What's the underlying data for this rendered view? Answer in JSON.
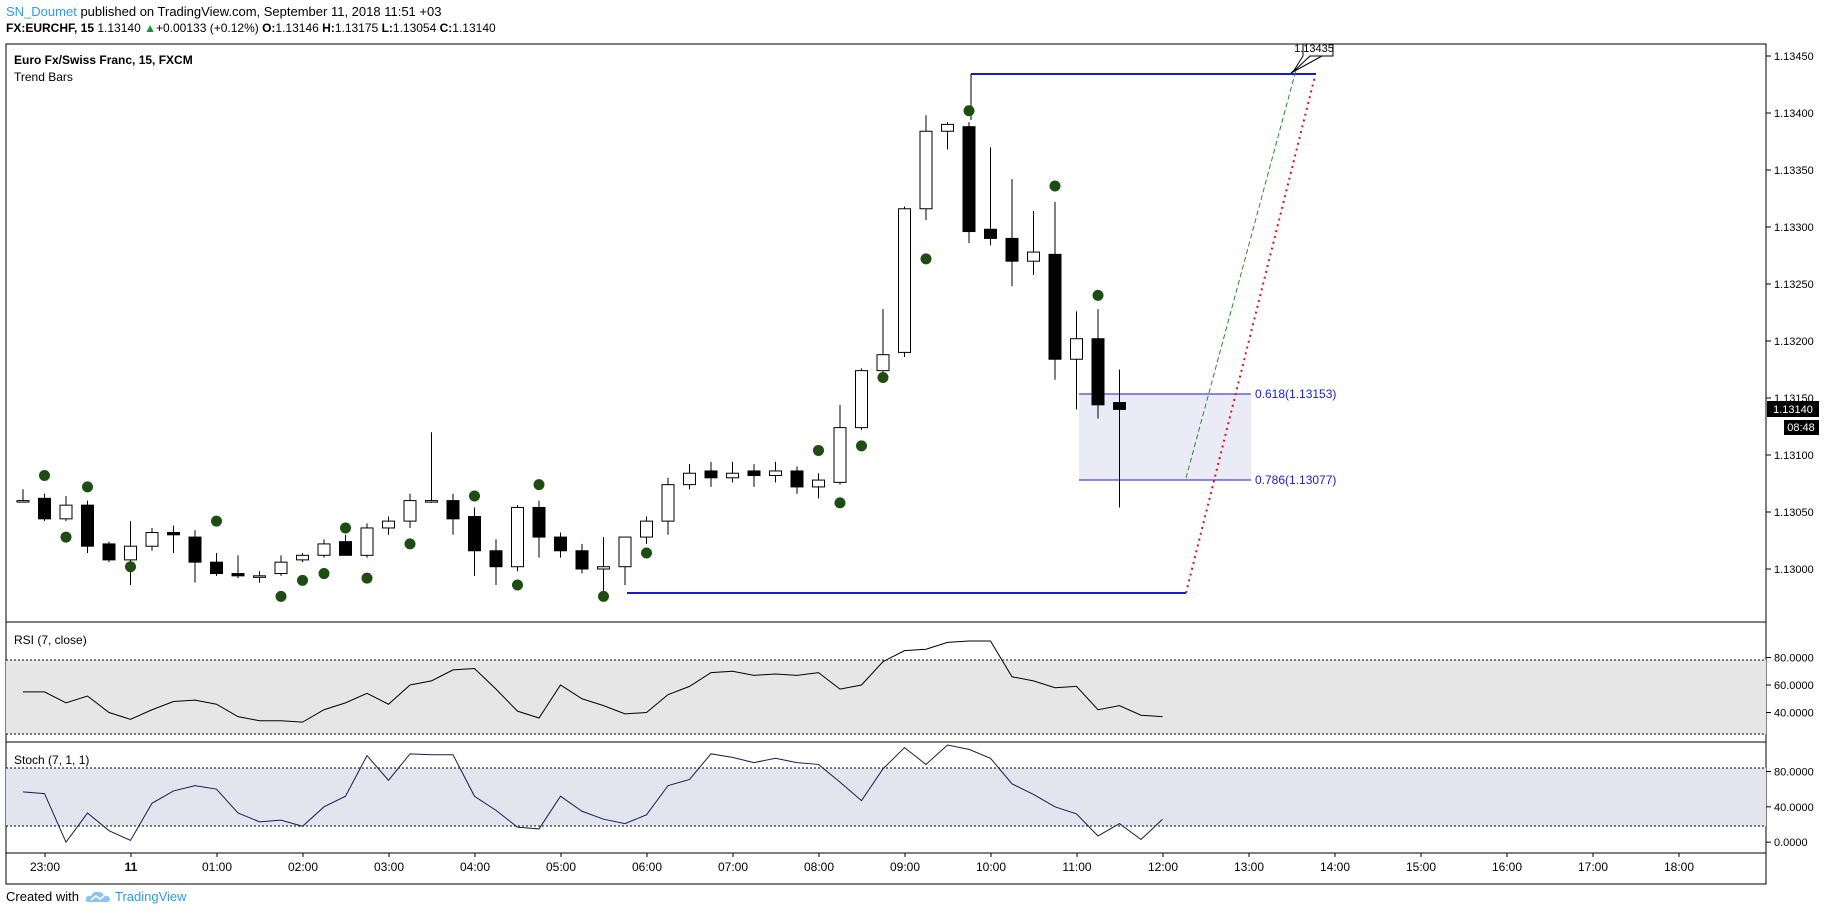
{
  "header": {
    "author": "SN_Doumet",
    "published_text": "published on TradingView.com, September 11, 2018 11:51 +03",
    "symbol": "FX:EURCHF, 15",
    "change_arrow": "▲",
    "change": "+0.00133 (+0.12%)",
    "o_label": "O:",
    "o_value": "1.13146",
    "h_label": "H:",
    "h_value": "1.13175",
    "l_label": "L:",
    "l_value": "1.13054",
    "c_label": "C:",
    "c_value": "1.13140"
  },
  "main_pane": {
    "title": "Euro Fx/Swiss Franc, 15, FXCM",
    "indicator": "Trend Bars",
    "price_labels": [
      "1.13450",
      "1.13400",
      "1.13350",
      "1.13300",
      "1.13250",
      "1.13200",
      "1.13150",
      "1.13100",
      "1.13050",
      "1.13000"
    ],
    "current_price": "1.13140",
    "countdown": "08:48",
    "target_label": "1.13435",
    "fib_618": "0.618(1.13153)",
    "fib_786": "0.786(1.13077)"
  },
  "rsi_pane": {
    "title": "RSI (7, close)",
    "labels": [
      "80.0000",
      "60.0000",
      "40.0000"
    ]
  },
  "stoch_pane": {
    "title": "Stoch (7, 1, 1)",
    "labels": [
      "80.0000",
      "40.0000",
      "0.0000"
    ]
  },
  "time_axis": [
    "23:00",
    "11",
    "01:00",
    "02:00",
    "03:00",
    "04:00",
    "05:00",
    "06:00",
    "07:00",
    "08:00",
    "09:00",
    "10:00",
    "11:00",
    "12:00",
    "13:00",
    "14:00",
    "15:00",
    "16:00",
    "17:00",
    "18:00"
  ],
  "footer": {
    "created_with": "Created with",
    "brand": "TradingView"
  },
  "colors": {
    "up_fill": "#ffffff",
    "down_fill": "#000000",
    "dot": "#1e4d12",
    "line_blue": "#1a1acc",
    "rsi_band": "#e6e6e6",
    "stoch_band": "#e4e4ef",
    "fib_zone": "#ebebf8"
  },
  "chart_data": [
    {
      "type": "candlestick",
      "title": "Euro Fx/Swiss Franc, 15, FXCM",
      "timeframe": "15",
      "y_range": [
        1.1296,
        1.1346
      ],
      "candles": [
        {
          "o": 1.1306,
          "h": 1.1307,
          "l": 1.1306,
          "c": 1.1306
        },
        {
          "o": 1.13062,
          "h": 1.13066,
          "l": 1.13042,
          "c": 1.13044
        },
        {
          "o": 1.13044,
          "h": 1.13064,
          "l": 1.13042,
          "c": 1.13056
        },
        {
          "o": 1.13056,
          "h": 1.1306,
          "l": 1.13014,
          "c": 1.1302
        },
        {
          "o": 1.13022,
          "h": 1.13024,
          "l": 1.13006,
          "c": 1.13008
        },
        {
          "o": 1.13008,
          "h": 1.13042,
          "l": 1.12986,
          "c": 1.1302
        },
        {
          "o": 1.1302,
          "h": 1.13036,
          "l": 1.13016,
          "c": 1.13032
        },
        {
          "o": 1.13032,
          "h": 1.13038,
          "l": 1.13014,
          "c": 1.1303
        },
        {
          "o": 1.13028,
          "h": 1.13034,
          "l": 1.12988,
          "c": 1.13006
        },
        {
          "o": 1.13006,
          "h": 1.13014,
          "l": 1.12994,
          "c": 1.12996
        },
        {
          "o": 1.12996,
          "h": 1.13012,
          "l": 1.12992,
          "c": 1.12994
        },
        {
          "o": 1.12994,
          "h": 1.12998,
          "l": 1.12988,
          "c": 1.12994
        },
        {
          "o": 1.12996,
          "h": 1.13012,
          "l": 1.12994,
          "c": 1.13006
        },
        {
          "o": 1.13008,
          "h": 1.13014,
          "l": 1.13006,
          "c": 1.13012
        },
        {
          "o": 1.13012,
          "h": 1.13026,
          "l": 1.1301,
          "c": 1.13022
        },
        {
          "o": 1.13024,
          "h": 1.1303,
          "l": 1.13012,
          "c": 1.13012
        },
        {
          "o": 1.13012,
          "h": 1.1304,
          "l": 1.1301,
          "c": 1.13036
        },
        {
          "o": 1.13036,
          "h": 1.13046,
          "l": 1.1303,
          "c": 1.13042
        },
        {
          "o": 1.13042,
          "h": 1.13066,
          "l": 1.13036,
          "c": 1.1306
        },
        {
          "o": 1.1306,
          "h": 1.1312,
          "l": 1.13058,
          "c": 1.1306
        },
        {
          "o": 1.1306,
          "h": 1.13066,
          "l": 1.1303,
          "c": 1.13044
        },
        {
          "o": 1.13046,
          "h": 1.13054,
          "l": 1.12994,
          "c": 1.13016
        },
        {
          "o": 1.13016,
          "h": 1.13026,
          "l": 1.12986,
          "c": 1.13002
        },
        {
          "o": 1.13002,
          "h": 1.13056,
          "l": 1.12998,
          "c": 1.13054
        },
        {
          "o": 1.13054,
          "h": 1.1306,
          "l": 1.1301,
          "c": 1.13028
        },
        {
          "o": 1.13028,
          "h": 1.13032,
          "l": 1.1301,
          "c": 1.13016
        },
        {
          "o": 1.13016,
          "h": 1.13022,
          "l": 1.12996,
          "c": 1.13
        },
        {
          "o": 1.13,
          "h": 1.13028,
          "l": 1.12976,
          "c": 1.13002
        },
        {
          "o": 1.13002,
          "h": 1.13028,
          "l": 1.12986,
          "c": 1.13028
        },
        {
          "o": 1.13028,
          "h": 1.13046,
          "l": 1.13022,
          "c": 1.13042
        },
        {
          "o": 1.13042,
          "h": 1.1308,
          "l": 1.1303,
          "c": 1.13074
        },
        {
          "o": 1.13074,
          "h": 1.13092,
          "l": 1.1307,
          "c": 1.13084
        },
        {
          "o": 1.13086,
          "h": 1.13094,
          "l": 1.13072,
          "c": 1.1308
        },
        {
          "o": 1.1308,
          "h": 1.13094,
          "l": 1.13076,
          "c": 1.13084
        },
        {
          "o": 1.13086,
          "h": 1.13092,
          "l": 1.13072,
          "c": 1.13082
        },
        {
          "o": 1.13082,
          "h": 1.13094,
          "l": 1.13076,
          "c": 1.13086
        },
        {
          "o": 1.13086,
          "h": 1.1309,
          "l": 1.13066,
          "c": 1.13072
        },
        {
          "o": 1.13072,
          "h": 1.13084,
          "l": 1.13062,
          "c": 1.13078
        },
        {
          "o": 1.13076,
          "h": 1.13144,
          "l": 1.13074,
          "c": 1.13124
        },
        {
          "o": 1.13124,
          "h": 1.13176,
          "l": 1.13122,
          "c": 1.13174
        },
        {
          "o": 1.13174,
          "h": 1.13228,
          "l": 1.13168,
          "c": 1.13188
        },
        {
          "o": 1.1319,
          "h": 1.13318,
          "l": 1.13186,
          "c": 1.13316
        },
        {
          "o": 1.13316,
          "h": 1.13398,
          "l": 1.13306,
          "c": 1.13384
        },
        {
          "o": 1.13384,
          "h": 1.13392,
          "l": 1.13368,
          "c": 1.1339
        },
        {
          "o": 1.13388,
          "h": 1.13392,
          "l": 1.13286,
          "c": 1.13296
        },
        {
          "o": 1.13298,
          "h": 1.1337,
          "l": 1.13284,
          "c": 1.1329
        },
        {
          "o": 1.1329,
          "h": 1.13342,
          "l": 1.13248,
          "c": 1.1327
        },
        {
          "o": 1.1327,
          "h": 1.13314,
          "l": 1.13258,
          "c": 1.13278
        },
        {
          "o": 1.13276,
          "h": 1.13322,
          "l": 1.13166,
          "c": 1.13184
        },
        {
          "o": 1.13184,
          "h": 1.13226,
          "l": 1.1314,
          "c": 1.13202
        },
        {
          "o": 1.13202,
          "h": 1.13228,
          "l": 1.13132,
          "c": 1.13144
        },
        {
          "o": 1.13146,
          "h": 1.13175,
          "l": 1.13054,
          "c": 1.1314
        }
      ],
      "trend_dots": [
        {
          "bar": 1,
          "price": 1.13082
        },
        {
          "bar": 2,
          "price": 1.13028
        },
        {
          "bar": 3,
          "price": 1.13072
        },
        {
          "bar": 5,
          "price": 1.13002
        },
        {
          "bar": 9,
          "price": 1.13042
        },
        {
          "bar": 12,
          "price": 1.12976
        },
        {
          "bar": 13,
          "price": 1.1299
        },
        {
          "bar": 14,
          "price": 1.12996
        },
        {
          "bar": 15,
          "price": 1.13036
        },
        {
          "bar": 16,
          "price": 1.12992
        },
        {
          "bar": 18,
          "price": 1.13022
        },
        {
          "bar": 21,
          "price": 1.13064
        },
        {
          "bar": 23,
          "price": 1.12986
        },
        {
          "bar": 24,
          "price": 1.13074
        },
        {
          "bar": 27,
          "price": 1.12976
        },
        {
          "bar": 29,
          "price": 1.13014
        },
        {
          "bar": 37,
          "price": 1.13104
        },
        {
          "bar": 38,
          "price": 1.13058
        },
        {
          "bar": 39,
          "price": 1.13108
        },
        {
          "bar": 40,
          "price": 1.13168
        },
        {
          "bar": 42,
          "price": 1.13272
        },
        {
          "bar": 44,
          "price": 1.13402
        },
        {
          "bar": 48,
          "price": 1.13336
        },
        {
          "bar": 50,
          "price": 1.1324
        }
      ],
      "drawings": {
        "support_line": 1.12978,
        "high_line": 1.13432,
        "target_label": "1.13435",
        "fib_levels": [
          {
            "ratio": 0.618,
            "price": 1.13153
          },
          {
            "ratio": 0.786,
            "price": 1.13077
          }
        ]
      }
    },
    {
      "type": "line",
      "title": "RSI (7, close)",
      "y_range": [
        20,
        100
      ],
      "bands": [
        30,
        75
      ],
      "values": [
        55,
        55,
        47,
        52,
        40,
        35,
        42,
        48,
        49,
        46,
        37,
        34,
        34,
        33,
        42,
        47,
        54,
        46,
        60,
        63,
        71,
        72,
        57,
        41,
        36,
        60,
        50,
        45,
        39,
        40,
        53,
        59,
        69,
        70,
        67,
        68,
        67,
        69,
        57,
        60,
        77,
        85,
        86,
        91,
        92,
        92,
        66,
        63,
        58,
        59,
        42,
        45,
        38,
        37
      ]
    },
    {
      "type": "line",
      "title": "Stoch (7, 1, 1)",
      "y_range": [
        -10,
        110
      ],
      "bands": [
        20,
        80
      ],
      "values": [
        57,
        55,
        0,
        33,
        13,
        2,
        44,
        58,
        64,
        60,
        33,
        23,
        25,
        18,
        40,
        52,
        98,
        70,
        100,
        99,
        99,
        52,
        36,
        17,
        15,
        52,
        35,
        26,
        21,
        31,
        64,
        71,
        100,
        96,
        90,
        95,
        90,
        88,
        68,
        47,
        83,
        107,
        88,
        110,
        105,
        95,
        66,
        54,
        40,
        32,
        7,
        21,
        3,
        26
      ]
    }
  ]
}
